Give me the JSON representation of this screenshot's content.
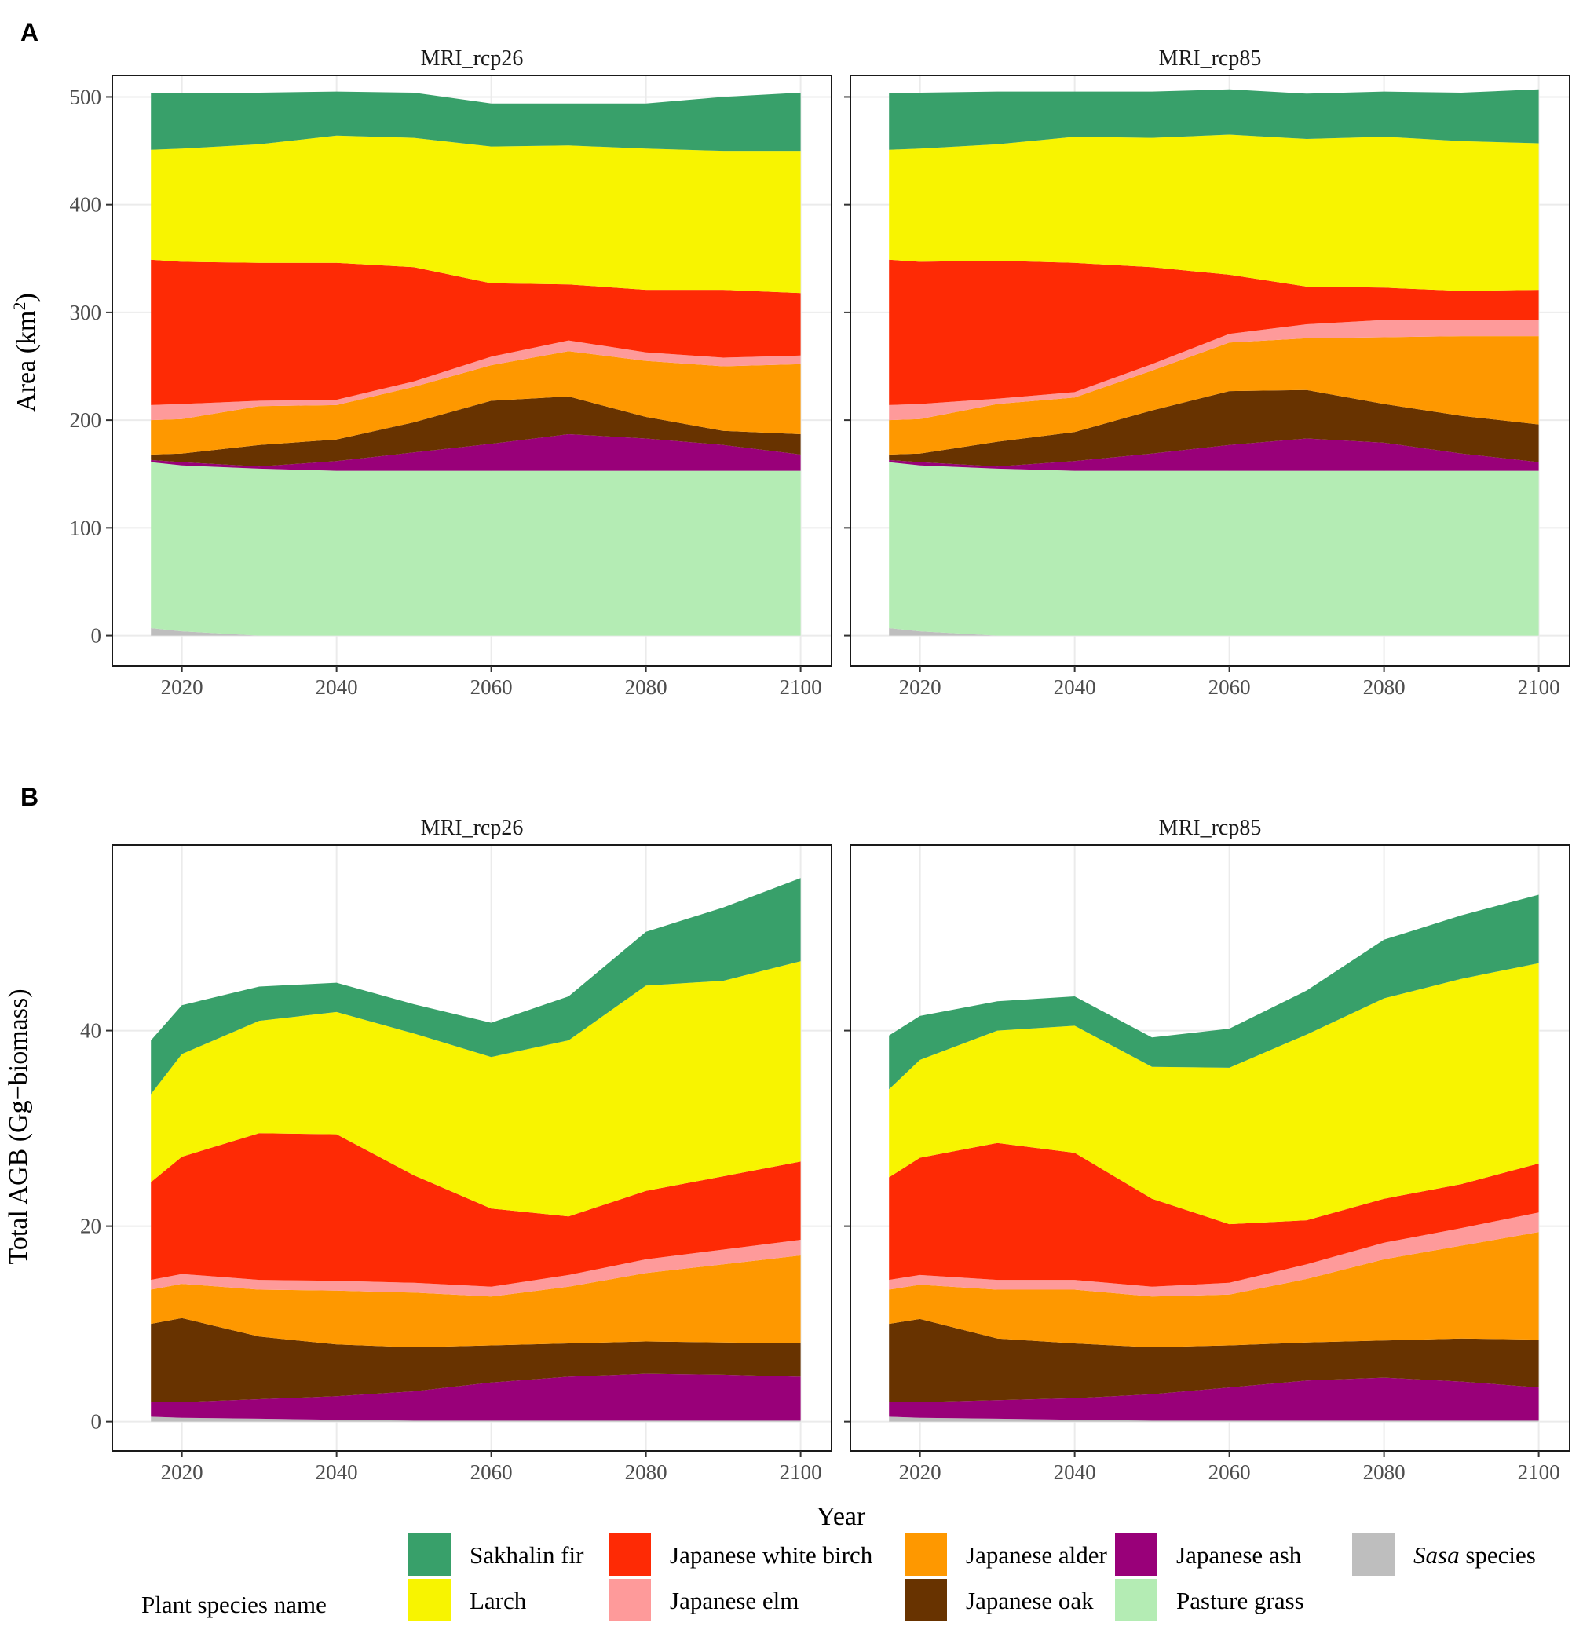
{
  "figure": {
    "panel_a_letter": "A",
    "panel_b_letter": "B",
    "x_axis_title": "Year",
    "legend_title": "Plant species name"
  },
  "species": [
    {
      "name": "Sakhalin fir",
      "color": "#38a06a",
      "italic_part": ""
    },
    {
      "name": "Larch",
      "color": "#f8f400",
      "italic_part": ""
    },
    {
      "name": "Japanese white birch",
      "color": "#fe2a05",
      "italic_part": ""
    },
    {
      "name": "Japanese elm",
      "color": "#fe9a9a",
      "italic_part": ""
    },
    {
      "name": "Japanese alder",
      "color": "#fe9800",
      "italic_part": ""
    },
    {
      "name": "Japanese oak",
      "color": "#683300",
      "italic_part": ""
    },
    {
      "name": "Japanese ash",
      "color": "#990079",
      "italic_part": ""
    },
    {
      "name": "Pasture grass",
      "color": "#b4ecb4",
      "italic_part": ""
    },
    {
      "name": "species",
      "color": "#bebebe",
      "italic_part": "Sasa"
    }
  ],
  "chart_data": [
    {
      "type": "area",
      "panel": "A",
      "facet": "MRI_rcp26",
      "title": "MRI_rcp26",
      "xlabel": "Year",
      "ylabel": "Area (km²)",
      "ylabel_main": "Area (km",
      "ylabel_sup": "2",
      "ylabel_end": ")",
      "xlim": [
        2011,
        2104
      ],
      "ylim": [
        -28,
        520
      ],
      "xticks": [
        2020,
        2040,
        2060,
        2080,
        2100
      ],
      "yticks": [
        0,
        100,
        200,
        300,
        400,
        500
      ],
      "x": [
        2016,
        2020,
        2030,
        2040,
        2050,
        2060,
        2070,
        2080,
        2090,
        2100
      ],
      "series": [
        {
          "name": "Sasa species",
          "values": [
            7,
            4,
            0,
            0,
            0,
            0,
            0,
            0,
            0,
            0
          ]
        },
        {
          "name": "Pasture grass",
          "values": [
            154,
            154,
            155,
            153,
            153,
            153,
            153,
            153,
            153,
            153
          ]
        },
        {
          "name": "Japanese ash",
          "values": [
            2,
            3,
            2,
            9,
            17,
            25,
            34,
            30,
            24,
            15
          ]
        },
        {
          "name": "Japanese oak",
          "values": [
            5,
            8,
            20,
            20,
            28,
            40,
            35,
            20,
            13,
            19
          ]
        },
        {
          "name": "Japanese alder",
          "values": [
            32,
            32,
            36,
            32,
            33,
            33,
            42,
            52,
            60,
            65
          ]
        },
        {
          "name": "Japanese elm",
          "values": [
            14,
            14,
            5,
            5,
            5,
            8,
            10,
            8,
            8,
            8
          ]
        },
        {
          "name": "Japanese white birch",
          "values": [
            135,
            132,
            128,
            127,
            106,
            68,
            52,
            58,
            63,
            58
          ]
        },
        {
          "name": "Larch",
          "values": [
            102,
            105,
            110,
            118,
            120,
            127,
            129,
            131,
            129,
            132
          ]
        },
        {
          "name": "Sakhalin fir",
          "values": [
            53,
            52,
            48,
            41,
            42,
            40,
            39,
            42,
            50,
            54
          ]
        }
      ]
    },
    {
      "type": "area",
      "panel": "A",
      "facet": "MRI_rcp85",
      "title": "MRI_rcp85",
      "xlabel": "Year",
      "ylabel": "Area (km²)",
      "xlim": [
        2011,
        2104
      ],
      "ylim": [
        -28,
        520
      ],
      "xticks": [
        2020,
        2040,
        2060,
        2080,
        2100
      ],
      "yticks": [
        0,
        100,
        200,
        300,
        400,
        500
      ],
      "x": [
        2016,
        2020,
        2030,
        2040,
        2050,
        2060,
        2070,
        2080,
        2090,
        2100
      ],
      "series": [
        {
          "name": "Sasa species",
          "values": [
            7,
            4,
            0,
            0,
            0,
            0,
            0,
            0,
            0,
            0
          ]
        },
        {
          "name": "Pasture grass",
          "values": [
            154,
            154,
            155,
            153,
            153,
            153,
            153,
            153,
            153,
            153
          ]
        },
        {
          "name": "Japanese ash",
          "values": [
            2,
            3,
            2,
            9,
            16,
            24,
            30,
            26,
            16,
            8
          ]
        },
        {
          "name": "Japanese oak",
          "values": [
            5,
            8,
            23,
            27,
            40,
            50,
            45,
            36,
            35,
            35
          ]
        },
        {
          "name": "Japanese alder",
          "values": [
            32,
            32,
            35,
            32,
            37,
            45,
            48,
            62,
            74,
            82
          ]
        },
        {
          "name": "Japanese elm",
          "values": [
            14,
            14,
            5,
            5,
            6,
            8,
            13,
            16,
            15,
            15
          ]
        },
        {
          "name": "Japanese white birch",
          "values": [
            135,
            132,
            128,
            120,
            90,
            55,
            35,
            30,
            27,
            28
          ]
        },
        {
          "name": "Larch",
          "values": [
            102,
            105,
            108,
            117,
            120,
            130,
            137,
            140,
            139,
            136
          ]
        },
        {
          "name": "Sakhalin fir",
          "values": [
            53,
            52,
            49,
            42,
            43,
            42,
            42,
            42,
            45,
            50
          ]
        }
      ]
    },
    {
      "type": "area",
      "panel": "B",
      "facet": "MRI_rcp26",
      "title": "MRI_rcp26",
      "xlabel": "Year",
      "ylabel": "Total AGB (Gg−biomass)",
      "xlim": [
        2011,
        2104
      ],
      "ylim": [
        -3,
        59
      ],
      "xticks": [
        2020,
        2040,
        2060,
        2080,
        2100
      ],
      "yticks": [
        0,
        20,
        40
      ],
      "x": [
        2016,
        2020,
        2030,
        2040,
        2050,
        2060,
        2070,
        2080,
        2090,
        2100
      ],
      "series": [
        {
          "name": "Sasa species",
          "values": [
            0.5,
            0.4,
            0.3,
            0.2,
            0.1,
            0.1,
            0.1,
            0.1,
            0.1,
            0.1
          ]
        },
        {
          "name": "Pasture grass",
          "values": [
            0,
            0,
            0,
            0,
            0,
            0,
            0,
            0,
            0,
            0
          ]
        },
        {
          "name": "Japanese ash",
          "values": [
            1.5,
            1.6,
            2.0,
            2.4,
            3.0,
            3.9,
            4.5,
            4.8,
            4.7,
            4.5
          ]
        },
        {
          "name": "Japanese oak",
          "values": [
            8.0,
            8.6,
            6.4,
            5.3,
            4.5,
            3.8,
            3.4,
            3.3,
            3.3,
            3.4
          ]
        },
        {
          "name": "Japanese alder",
          "values": [
            3.5,
            3.5,
            4.8,
            5.5,
            5.6,
            5.0,
            5.8,
            7.0,
            8.0,
            9.0
          ]
        },
        {
          "name": "Japanese elm",
          "values": [
            1.0,
            1.0,
            1.0,
            1.0,
            1.0,
            1.0,
            1.2,
            1.4,
            1.5,
            1.6
          ]
        },
        {
          "name": "Japanese white birch",
          "values": [
            10.0,
            12.0,
            15.0,
            15.0,
            11.0,
            8.0,
            6.0,
            7.0,
            7.5,
            8.0
          ]
        },
        {
          "name": "Larch",
          "values": [
            9.0,
            10.5,
            11.5,
            12.5,
            14.5,
            15.5,
            18.0,
            21.0,
            20.0,
            20.5
          ]
        },
        {
          "name": "Sakhalin fir",
          "values": [
            5.5,
            5.0,
            3.5,
            3.0,
            3.0,
            3.5,
            4.5,
            5.5,
            7.5,
            8.5
          ]
        }
      ]
    },
    {
      "type": "area",
      "panel": "B",
      "facet": "MRI_rcp85",
      "title": "MRI_rcp85",
      "xlabel": "Year",
      "ylabel": "Total AGB (Gg−biomass)",
      "xlim": [
        2011,
        2104
      ],
      "ylim": [
        -3,
        59
      ],
      "xticks": [
        2020,
        2040,
        2060,
        2080,
        2100
      ],
      "yticks": [
        0,
        20,
        40
      ],
      "x": [
        2016,
        2020,
        2030,
        2040,
        2050,
        2060,
        2070,
        2080,
        2090,
        2100
      ],
      "series": [
        {
          "name": "Sasa species",
          "values": [
            0.5,
            0.4,
            0.3,
            0.2,
            0.1,
            0.1,
            0.1,
            0.1,
            0.1,
            0.1
          ]
        },
        {
          "name": "Pasture grass",
          "values": [
            0,
            0,
            0,
            0,
            0,
            0,
            0,
            0,
            0,
            0
          ]
        },
        {
          "name": "Japanese ash",
          "values": [
            1.5,
            1.6,
            1.9,
            2.2,
            2.7,
            3.4,
            4.1,
            4.4,
            4.0,
            3.4
          ]
        },
        {
          "name": "Japanese oak",
          "values": [
            8.0,
            8.5,
            6.3,
            5.6,
            4.8,
            4.3,
            3.9,
            3.8,
            4.4,
            4.9
          ]
        },
        {
          "name": "Japanese alder",
          "values": [
            3.5,
            3.5,
            5.0,
            5.5,
            5.2,
            5.2,
            6.5,
            8.3,
            9.5,
            11.0
          ]
        },
        {
          "name": "Japanese elm",
          "values": [
            1.0,
            1.0,
            1.0,
            1.0,
            1.0,
            1.2,
            1.5,
            1.7,
            1.8,
            2.0
          ]
        },
        {
          "name": "Japanese white birch",
          "values": [
            10.5,
            12.0,
            14.0,
            13.0,
            9.0,
            6.0,
            4.5,
            4.5,
            4.5,
            5.0
          ]
        },
        {
          "name": "Larch",
          "values": [
            9.0,
            10.0,
            11.5,
            13.0,
            13.5,
            16.0,
            19.0,
            20.5,
            21.0,
            20.5
          ]
        },
        {
          "name": "Sakhalin fir",
          "values": [
            5.5,
            4.5,
            3.0,
            3.0,
            3.0,
            4.0,
            4.5,
            6.0,
            6.5,
            7.0
          ]
        }
      ]
    }
  ]
}
